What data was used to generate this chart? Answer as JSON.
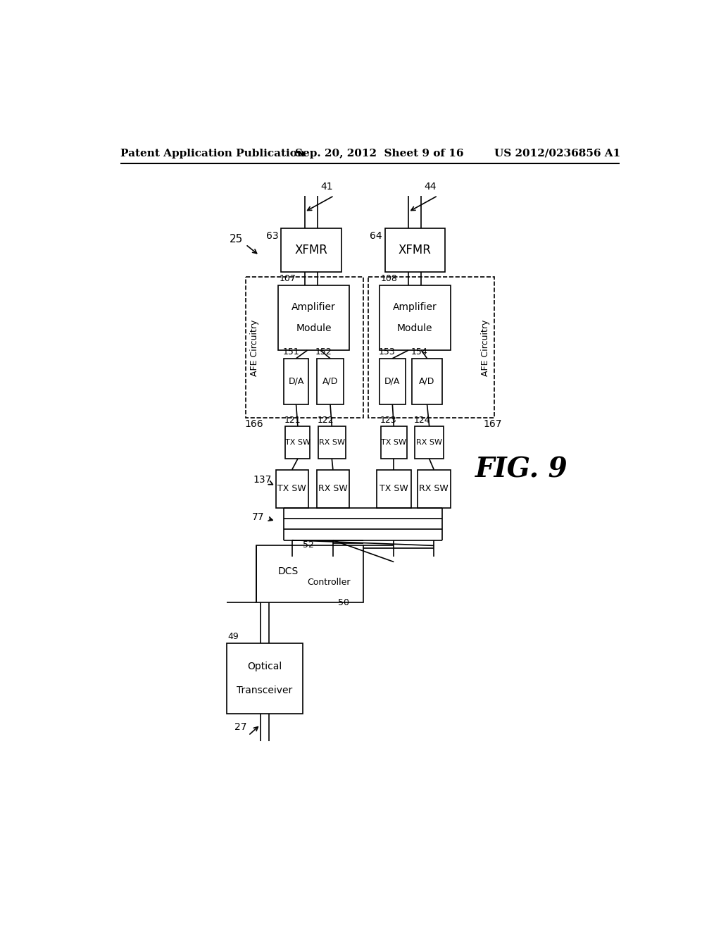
{
  "title_left": "Patent Application Publication",
  "title_center": "Sep. 20, 2012  Sheet 9 of 16",
  "title_right": "US 2012/0236856 A1",
  "fig_label": "FIG. 9",
  "bg_color": "#ffffff",
  "line_color": "#000000"
}
